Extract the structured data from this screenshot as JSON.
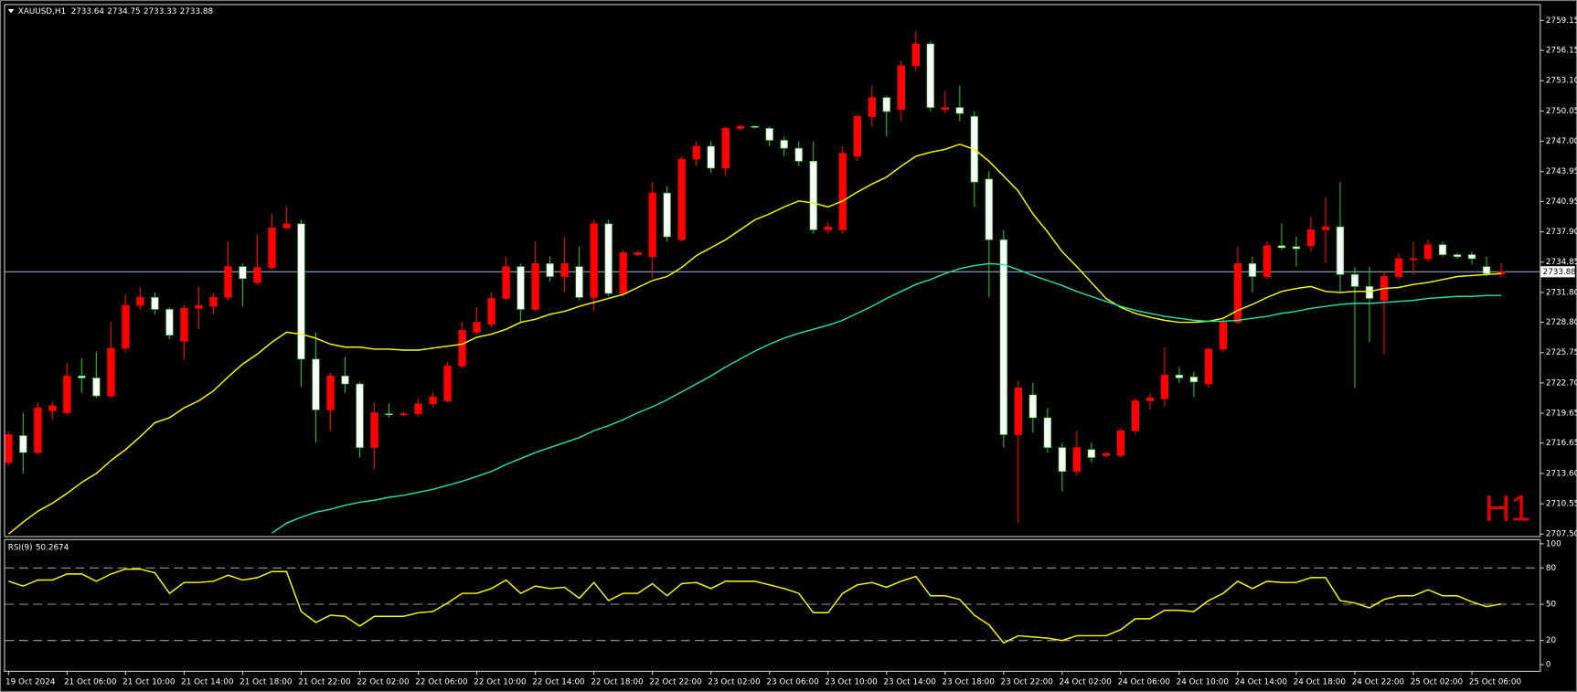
{
  "chart_data": [
    {
      "type": "candlestick",
      "title": "XAUUSD,H1",
      "watermark": "H1",
      "categories": [
        "19 Oct 2024",
        null,
        null,
        null,
        "21 Oct 06:00",
        null,
        null,
        null,
        "21 Oct 10:00",
        null,
        null,
        null,
        "21 Oct 14:00",
        null,
        null,
        null,
        "21 Oct 18:00",
        null,
        null,
        null,
        "21 Oct 22:00",
        null,
        null,
        null,
        "22 Oct 02:00",
        null,
        null,
        null,
        "22 Oct 06:00",
        null,
        null,
        null,
        "22 Oct 10:00",
        null,
        null,
        null,
        "22 Oct 14:00",
        null,
        null,
        null,
        "22 Oct 18:00",
        null,
        null,
        null,
        "22 Oct 22:00",
        null,
        null,
        null,
        "23 Oct 02:00",
        null,
        null,
        null,
        "23 Oct 06:00",
        null,
        null,
        null,
        "23 Oct 10:00",
        null,
        null,
        null,
        "23 Oct 14:00",
        null,
        null,
        null,
        "23 Oct 18:00",
        null,
        null,
        null,
        "23 Oct 22:00",
        null,
        null,
        null,
        "24 Oct 02:00",
        null,
        null,
        null,
        "24 Oct 06:00",
        null,
        null,
        null,
        "24 Oct 10:00",
        null,
        null,
        null,
        "24 Oct 14:00",
        null,
        null,
        null,
        "24 Oct 18:00",
        null,
        null,
        null,
        "24 Oct 22:00",
        null,
        null,
        null,
        "25 Oct 02:00",
        null,
        null,
        null,
        "25 Oct 06:00",
        null,
        null
      ],
      "open": [
        2714.7,
        2717.4,
        2715.7,
        2719.9,
        2719.7,
        2723.4,
        2723.2,
        2721.4,
        2726.2,
        2730.5,
        2731.3,
        2730.1,
        2726.9,
        2730.2,
        2730.4,
        2731.3,
        2734.4,
        2732.8,
        2734.3,
        2738.3,
        2738.7,
        2725.1,
        2720.0,
        2723.4,
        2722.6,
        2716.2,
        2719.6,
        2719.5,
        2719.6,
        2720.6,
        2720.9,
        2724.4,
        2727.8,
        2728.6,
        2731.2,
        2734.4,
        2730.1,
        2734.7,
        2733.4,
        2734.4,
        2731.3,
        2738.7,
        2731.7,
        2735.6,
        2735.4,
        2741.8,
        2737.1,
        2745.2,
        2746.5,
        2744.3,
        2748.3,
        2748.5,
        2748.3,
        2747.1,
        2746.3,
        2745.0,
        2738.1,
        2738.1,
        2745.5,
        2749.5,
        2751.4,
        2750.2,
        2754.6,
        2756.8,
        2750.2,
        2750.4,
        2749.5,
        2743.2,
        2737.1,
        2717.5,
        2721.5,
        2719.2,
        2716.2,
        2713.8,
        2716.0,
        2715.4,
        2715.4,
        2717.9,
        2720.9,
        2721.1,
        2723.5,
        2723.3,
        2722.6,
        2726.1,
        2728.8,
        2734.7,
        2733.4,
        2736.5,
        2736.4,
        2736.5,
        2738.1,
        2738.4,
        2733.6,
        2732.4,
        2731.0,
        2733.4,
        2735.1,
        2735.2,
        2736.6,
        2735.6,
        2735.6,
        2734.4,
        2733.64
      ],
      "high": [
        2717.8,
        2719.7,
        2720.7,
        2720.8,
        2724.7,
        2725.2,
        2725.8,
        2728.8,
        2731.6,
        2732.3,
        2731.8,
        2730.3,
        2730.5,
        2732.4,
        2731.8,
        2736.9,
        2734.7,
        2737.6,
        2739.7,
        2740.4,
        2739.1,
        2727.8,
        2723.7,
        2725.3,
        2722.8,
        2720.7,
        2720.6,
        2719.8,
        2721.2,
        2721.8,
        2724.8,
        2728.8,
        2730.3,
        2731.8,
        2735.4,
        2734.7,
        2736.9,
        2735.4,
        2737.4,
        2736.4,
        2739.1,
        2739.1,
        2736.1,
        2736.0,
        2742.9,
        2742.5,
        2745.5,
        2747.0,
        2747.0,
        2748.5,
        2748.7,
        2748.6,
        2748.5,
        2747.5,
        2747.0,
        2747.0,
        2738.9,
        2746.5,
        2749.7,
        2752.6,
        2751.6,
        2755.1,
        2758.1,
        2757.1,
        2752.1,
        2752.6,
        2750.0,
        2744.0,
        2738.1,
        2722.9,
        2722.7,
        2720.2,
        2716.7,
        2717.9,
        2716.7,
        2715.8,
        2718.2,
        2721.2,
        2721.7,
        2726.3,
        2724.3,
        2723.8,
        2726.3,
        2729.3,
        2736.4,
        2735.4,
        2736.9,
        2738.7,
        2737.4,
        2739.4,
        2741.4,
        2742.9,
        2734.4,
        2734.4,
        2733.9,
        2735.7,
        2736.9,
        2737.1,
        2736.9,
        2735.8,
        2735.9,
        2735.4,
        2734.75
      ],
      "low": [
        2714.4,
        2713.6,
        2715.5,
        2719.0,
        2719.5,
        2721.7,
        2721.2,
        2721.2,
        2725.8,
        2730.1,
        2729.6,
        2727.1,
        2725.0,
        2728.1,
        2729.6,
        2731.0,
        2730.4,
        2732.5,
        2734.1,
        2738.1,
        2722.3,
        2716.7,
        2717.9,
        2721.7,
        2715.2,
        2714.0,
        2719.2,
        2719.3,
        2719.3,
        2720.3,
        2720.7,
        2724.2,
        2727.5,
        2728.3,
        2731.0,
        2728.8,
        2729.9,
        2732.9,
        2731.8,
        2731.0,
        2729.9,
        2731.4,
        2731.4,
        2735.4,
        2733.3,
        2736.9,
        2736.9,
        2744.5,
        2743.8,
        2743.5,
        2748.1,
        2748.3,
        2746.5,
        2745.5,
        2744.5,
        2737.7,
        2737.7,
        2737.7,
        2745.0,
        2748.5,
        2747.5,
        2749.0,
        2754.1,
        2750.0,
        2749.8,
        2749.0,
        2740.4,
        2731.3,
        2716.2,
        2708.6,
        2717.7,
        2715.7,
        2711.8,
        2713.4,
        2714.7,
        2715.2,
        2715.2,
        2717.5,
        2720.0,
        2720.3,
        2722.7,
        2721.3,
        2722.2,
        2725.8,
        2728.6,
        2731.8,
        2733.1,
        2736.1,
        2734.4,
        2735.9,
        2734.7,
        2731.8,
        2722.2,
        2726.8,
        2725.6,
        2733.1,
        2733.6,
        2734.9,
        2735.4,
        2735.2,
        2734.6,
        2733.4,
        2733.33
      ],
      "close": [
        2717.5,
        2715.7,
        2720.2,
        2720.4,
        2723.4,
        2723.2,
        2721.4,
        2726.2,
        2730.5,
        2731.3,
        2730.1,
        2727.5,
        2730.2,
        2730.5,
        2731.3,
        2734.4,
        2733.2,
        2734.3,
        2738.3,
        2738.7,
        2725.1,
        2720.0,
        2723.4,
        2722.6,
        2716.2,
        2719.7,
        2719.5,
        2719.6,
        2720.6,
        2721.3,
        2724.4,
        2728.0,
        2728.8,
        2731.2,
        2734.4,
        2730.1,
        2734.7,
        2733.4,
        2734.7,
        2731.3,
        2738.7,
        2731.7,
        2735.8,
        2735.8,
        2741.8,
        2737.4,
        2745.2,
        2746.5,
        2744.3,
        2748.3,
        2748.5,
        2748.5,
        2747.1,
        2746.3,
        2745.0,
        2738.1,
        2738.4,
        2745.8,
        2749.5,
        2751.4,
        2750.0,
        2754.6,
        2756.8,
        2750.4,
        2750.4,
        2749.8,
        2742.9,
        2737.1,
        2717.5,
        2722.2,
        2719.2,
        2716.2,
        2713.8,
        2716.2,
        2715.2,
        2715.6,
        2717.9,
        2720.9,
        2721.2,
        2723.5,
        2723.2,
        2722.8,
        2726.1,
        2728.8,
        2734.7,
        2733.4,
        2736.5,
        2736.3,
        2736.2,
        2738.1,
        2738.4,
        2733.6,
        2732.4,
        2731.2,
        2733.4,
        2735.2,
        2735.2,
        2736.6,
        2735.6,
        2735.4,
        2735.2,
        2733.7,
        2733.88
      ],
      "up_color": "#ff0000",
      "down_color": "#ffffff",
      "down_wick_color": "#22c022",
      "lines": [
        {
          "color": "#ffff00",
          "values": [
            2707.5,
            2708.7,
            2709.8,
            2710.6,
            2711.6,
            2712.7,
            2713.6,
            2714.9,
            2716.0,
            2717.3,
            2718.7,
            2719.2,
            2720.2,
            2720.9,
            2721.9,
            2723.3,
            2724.6,
            2725.6,
            2726.8,
            2727.8,
            2727.6,
            2727.2,
            2726.6,
            2726.3,
            2726.3,
            2726.1,
            2726.1,
            2726.0,
            2726.0,
            2726.2,
            2726.4,
            2726.6,
            2727.3,
            2727.6,
            2728.1,
            2728.8,
            2729.1,
            2729.6,
            2729.9,
            2730.4,
            2730.8,
            2731.2,
            2731.6,
            2732.3,
            2733.0,
            2733.4,
            2734.3,
            2735.5,
            2736.3,
            2737.1,
            2738.1,
            2739.1,
            2739.7,
            2740.4,
            2741.0,
            2740.8,
            2740.4,
            2741.0,
            2741.9,
            2742.7,
            2743.4,
            2744.5,
            2745.5,
            2745.9,
            2746.2,
            2746.7,
            2746.2,
            2745.0,
            2743.5,
            2742.0,
            2739.7,
            2737.9,
            2735.9,
            2734.4,
            2732.8,
            2731.2,
            2730.3,
            2729.7,
            2729.3,
            2729.0,
            2728.8,
            2728.8,
            2728.9,
            2729.2,
            2730.0,
            2730.6,
            2731.3,
            2731.9,
            2732.2,
            2732.4,
            2731.9,
            2731.8,
            2731.9,
            2731.9,
            2732.2,
            2732.3,
            2732.6,
            2732.8,
            2733.1,
            2733.4,
            2733.5,
            2733.6,
            2733.7
          ]
        },
        {
          "color": "#24e0aa",
          "values": [
            null,
            null,
            null,
            null,
            null,
            null,
            null,
            null,
            null,
            null,
            null,
            null,
            null,
            null,
            null,
            null,
            null,
            null,
            2707.6,
            2708.6,
            2709.2,
            2709.7,
            2710.0,
            2710.4,
            2710.7,
            2710.9,
            2711.2,
            2711.4,
            2711.7,
            2712.0,
            2712.4,
            2712.8,
            2713.3,
            2713.8,
            2714.5,
            2715.1,
            2715.7,
            2716.2,
            2716.7,
            2717.2,
            2717.9,
            2718.4,
            2719.0,
            2719.7,
            2720.3,
            2721.0,
            2721.8,
            2722.6,
            2723.4,
            2724.3,
            2725.1,
            2725.9,
            2726.6,
            2727.2,
            2727.7,
            2728.1,
            2728.5,
            2729.0,
            2729.7,
            2730.4,
            2731.2,
            2731.9,
            2732.6,
            2733.1,
            2733.7,
            2734.2,
            2734.5,
            2734.7,
            2734.6,
            2734.1,
            2733.5,
            2733.0,
            2732.5,
            2731.9,
            2731.4,
            2730.9,
            2730.4,
            2730.0,
            2729.7,
            2729.4,
            2729.2,
            2729.0,
            2728.9,
            2728.9,
            2729.0,
            2729.2,
            2729.4,
            2729.7,
            2729.9,
            2730.2,
            2730.4,
            2730.6,
            2730.7,
            2730.7,
            2730.8,
            2730.9,
            2731.0,
            2731.2,
            2731.3,
            2731.4,
            2731.4,
            2731.5,
            2731.5
          ]
        }
      ],
      "price_line_color": "#8fa8c8",
      "ylim": [
        2707.3,
        2760.7
      ],
      "yticks": [
        2759.15,
        2756.15,
        {
          "value": 2753.1,
          "label": "2753.10"
        },
        2750.05,
        {
          "value": 2747,
          "label": "2747.00"
        },
        2743.95,
        2740.95,
        {
          "value": 2737.9,
          "label": "2737.90"
        },
        2734.85,
        {
          "value": 2731.8,
          "label": "2731.80"
        },
        {
          "value": 2728.8,
          "label": "2728.80"
        },
        2725.75,
        {
          "value": 2722.7,
          "label": "2722.70"
        },
        2719.65,
        2716.65,
        {
          "value": 2713.6,
          "label": "2713.60"
        },
        2710.55,
        {
          "value": 2707.5,
          "label": "2707.50"
        }
      ]
    },
    {
      "type": "line",
      "title": "RSI(9)",
      "color": "#ffff00",
      "values": [
        69,
        65,
        70,
        70,
        75,
        75,
        69,
        75,
        79,
        79,
        76,
        59,
        68,
        68,
        69,
        74,
        70,
        72,
        77,
        77,
        44,
        35,
        41,
        40,
        32,
        40,
        40,
        40,
        43,
        44,
        51,
        59,
        59,
        63,
        70,
        59,
        65,
        63,
        64,
        55,
        68,
        53,
        59,
        59,
        67,
        57,
        67,
        68,
        63,
        69,
        69,
        69,
        66,
        63,
        59,
        43,
        43,
        59,
        66,
        68,
        64,
        69,
        73,
        57,
        57,
        54,
        41,
        33,
        18,
        24,
        23,
        22,
        20,
        24,
        24,
        24,
        29,
        38,
        38,
        45,
        45,
        44,
        53,
        59,
        69,
        63,
        69,
        68,
        68,
        72,
        72,
        53,
        51,
        47,
        54,
        57,
        57,
        62,
        57,
        57,
        52,
        48,
        50.2674
      ],
      "ylim": [
        -5,
        103
      ],
      "yticks": [
        100,
        80,
        50,
        20,
        0
      ],
      "levels": [
        80,
        50,
        20
      ],
      "level_color": "#9a9a9a"
    }
  ]
}
